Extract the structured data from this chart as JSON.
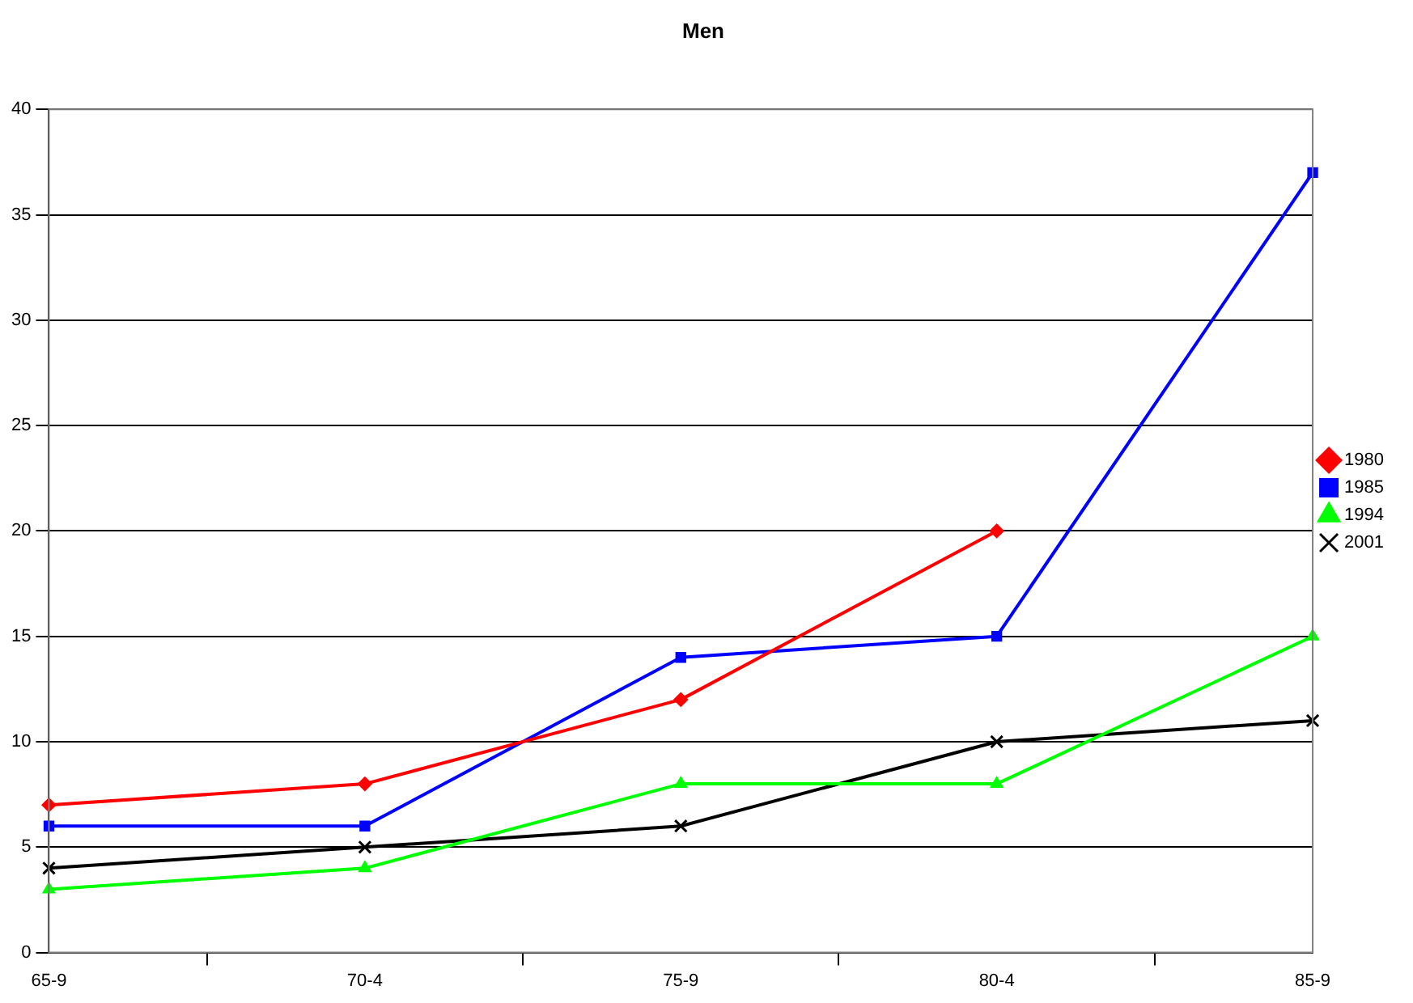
{
  "chart_data": {
    "type": "line",
    "title": "Men",
    "categories": [
      "65-9",
      "70-4",
      "75-9",
      "80-4",
      "85-9"
    ],
    "series": [
      {
        "name": "1980",
        "color": "#ff0000",
        "marker": "diamond",
        "values": [
          7,
          8,
          12,
          20,
          null
        ]
      },
      {
        "name": "1985",
        "color": "#0000ff",
        "marker": "square",
        "values": [
          6,
          6,
          14,
          15,
          37
        ]
      },
      {
        "name": "1994",
        "color": "#00ff00",
        "marker": "triangle",
        "values": [
          3,
          4,
          8,
          8,
          15
        ]
      },
      {
        "name": "2001",
        "color": "#000000",
        "marker": "cross",
        "values": [
          4,
          5,
          6,
          10,
          11
        ]
      }
    ],
    "ylim": [
      0,
      40
    ],
    "yticks": [
      0,
      5,
      10,
      15,
      20,
      25,
      30,
      35,
      40
    ],
    "grid": "y",
    "legend": "right"
  }
}
